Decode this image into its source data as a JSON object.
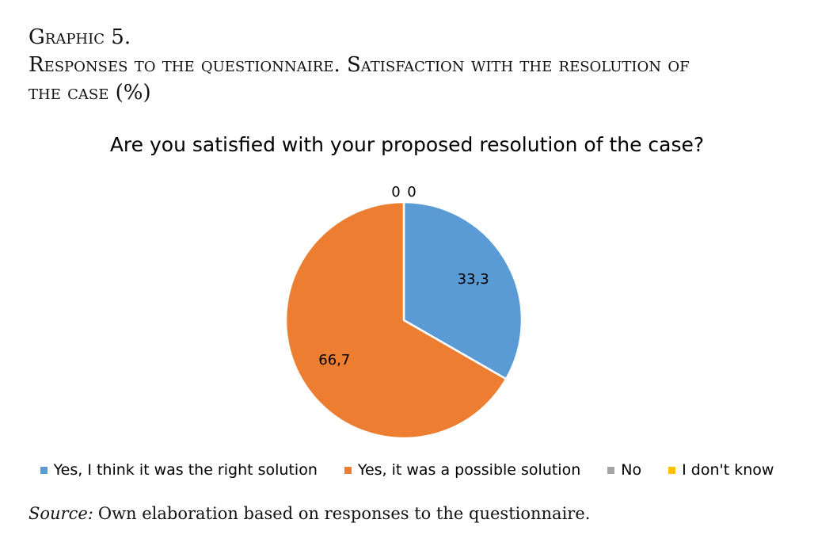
{
  "heading": {
    "line1": "Graphic 5.",
    "line2": "Responses to the questionnaire. Satisfaction with the resolution of",
    "line3": "the case (%)"
  },
  "source": {
    "label": "Source:",
    "text": "Own elaboration based on responses to the questionnaire."
  },
  "chart_data": {
    "type": "pie",
    "title": "Are you satisfied with your proposed resolution of the case?",
    "categories": [
      "Yes, I think it was the right solution",
      "Yes, it was a possible solution",
      "No",
      "I don't know"
    ],
    "values": [
      33.3,
      66.7,
      0,
      0
    ],
    "labels": [
      "33,3",
      "66,7",
      "0",
      "0"
    ],
    "colors": [
      "#5b9bd5",
      "#ed7d31",
      "#a5a5a5",
      "#ffc000"
    ],
    "legend": "bottom"
  }
}
